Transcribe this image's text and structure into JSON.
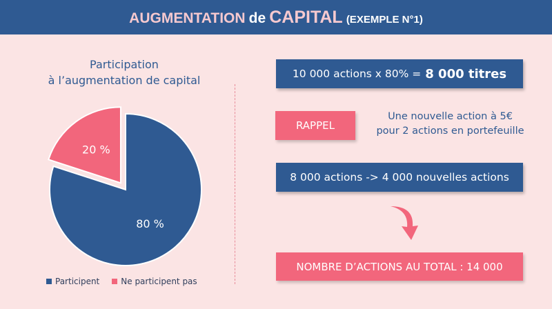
{
  "header": {
    "part1": "AUGMENTATION",
    "part2": "de",
    "part3": "CAPITAL",
    "part4": "(EXEMPLE N°1)"
  },
  "chart_data": {
    "type": "pie",
    "title_line1": "Participation",
    "title_line2": "à l’augmentation de capital",
    "slices": [
      {
        "name": "Participent",
        "value": 80,
        "label": "80 %",
        "color": "#2f5a92"
      },
      {
        "name": "Ne participent pas",
        "value": 20,
        "label": "20 %",
        "color": "#f2667c"
      }
    ],
    "legend_position": "bottom-left"
  },
  "calc": {
    "text": "10 000 actions x 80% =",
    "result": "8 000 titres"
  },
  "rappel": {
    "label": "RAPPEL",
    "line1": "Une nouvelle action à 5€",
    "line2": "pour 2 actions en portefeuille"
  },
  "conversion": {
    "text": "8 000 actions -> 4 000 nouvelles actions"
  },
  "total": {
    "text": "NOMBRE D’ACTIONS AU TOTAL : 14 000"
  },
  "colors": {
    "blue": "#2f5a92",
    "pink": "#f2667c",
    "background": "#fbe4e4"
  }
}
